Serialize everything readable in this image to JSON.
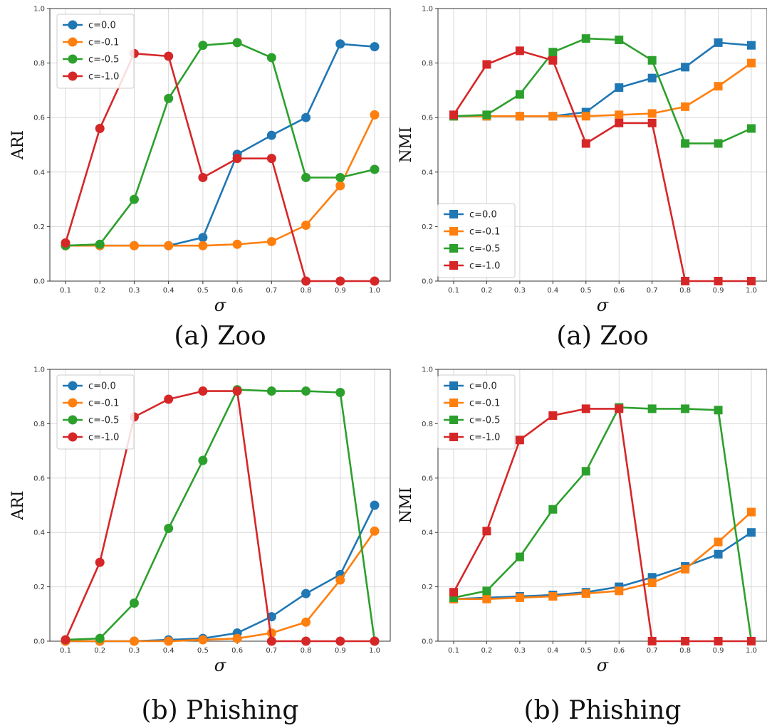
{
  "chart_data": [
    {
      "type": "line",
      "caption": "(a) Zoo",
      "ylabel": "ARI",
      "xlabel": "σ",
      "marker": "circle",
      "legend": "top-left",
      "grid": true,
      "xlim": [
        0.1,
        1.0
      ],
      "ylim": [
        0.0,
        1.0
      ],
      "xticks": [
        "0.1",
        "0.2",
        "0.3",
        "0.4",
        "0.5",
        "0.6",
        "0.7",
        "0.8",
        "0.9",
        "1.0"
      ],
      "yticks": [
        "0.0",
        "0.2",
        "0.4",
        "0.6",
        "0.8",
        "1.0"
      ],
      "x": [
        0.1,
        0.2,
        0.3,
        0.4,
        0.5,
        0.6,
        0.7,
        0.8,
        0.9,
        1.0
      ],
      "series": [
        {
          "name": "c=0.0",
          "color": "#1f77b4",
          "values": [
            0.13,
            0.13,
            0.13,
            0.13,
            0.16,
            0.465,
            0.535,
            0.6,
            0.87,
            0.86
          ]
        },
        {
          "name": "c=-0.1",
          "color": "#ff7f0e",
          "values": [
            0.13,
            0.13,
            0.13,
            0.13,
            0.13,
            0.135,
            0.145,
            0.205,
            0.35,
            0.61
          ]
        },
        {
          "name": "c=-0.5",
          "color": "#2ca02c",
          "values": [
            0.13,
            0.135,
            0.3,
            0.67,
            0.865,
            0.875,
            0.82,
            0.38,
            0.38,
            0.41
          ]
        },
        {
          "name": "c=-1.0",
          "color": "#d62728",
          "values": [
            0.14,
            0.56,
            0.835,
            0.825,
            0.38,
            0.45,
            0.45,
            0.0,
            0.0,
            0.0
          ]
        }
      ]
    },
    {
      "type": "line",
      "caption": "(a) Zoo",
      "ylabel": "NMI",
      "xlabel": "σ",
      "marker": "square",
      "legend": "bottom-left",
      "grid": true,
      "xlim": [
        0.1,
        1.0
      ],
      "ylim": [
        0.0,
        1.0
      ],
      "xticks": [
        "0.1",
        "0.2",
        "0.3",
        "0.4",
        "0.5",
        "0.6",
        "0.7",
        "0.8",
        "0.9",
        "1.0"
      ],
      "yticks": [
        "0.0",
        "0.2",
        "0.4",
        "0.6",
        "0.8",
        "1.0"
      ],
      "x": [
        0.1,
        0.2,
        0.3,
        0.4,
        0.5,
        0.6,
        0.7,
        0.8,
        0.9,
        1.0
      ],
      "series": [
        {
          "name": "c=0.0",
          "color": "#1f77b4",
          "values": [
            0.605,
            0.605,
            0.605,
            0.605,
            0.62,
            0.71,
            0.745,
            0.785,
            0.875,
            0.865
          ]
        },
        {
          "name": "c=-0.1",
          "color": "#ff7f0e",
          "values": [
            0.605,
            0.605,
            0.605,
            0.605,
            0.605,
            0.61,
            0.615,
            0.64,
            0.715,
            0.8
          ]
        },
        {
          "name": "c=-0.5",
          "color": "#2ca02c",
          "values": [
            0.605,
            0.61,
            0.685,
            0.84,
            0.89,
            0.885,
            0.81,
            0.505,
            0.505,
            0.56
          ]
        },
        {
          "name": "c=-1.0",
          "color": "#d62728",
          "values": [
            0.61,
            0.795,
            0.845,
            0.81,
            0.505,
            0.58,
            0.58,
            0.0,
            0.0,
            0.0
          ]
        }
      ]
    },
    {
      "type": "line",
      "caption": "(b) Phishing",
      "ylabel": "ARI",
      "xlabel": "σ",
      "marker": "circle",
      "legend": "top-left",
      "grid": true,
      "xlim": [
        0.1,
        1.0
      ],
      "ylim": [
        0.0,
        1.0
      ],
      "xticks": [
        "0.1",
        "0.2",
        "0.3",
        "0.4",
        "0.5",
        "0.6",
        "0.7",
        "0.8",
        "0.9",
        "1.0"
      ],
      "yticks": [
        "0.0",
        "0.2",
        "0.4",
        "0.6",
        "0.8",
        "1.0"
      ],
      "x": [
        0.1,
        0.2,
        0.3,
        0.4,
        0.5,
        0.6,
        0.7,
        0.8,
        0.9,
        1.0
      ],
      "series": [
        {
          "name": "c=0.0",
          "color": "#1f77b4",
          "values": [
            0.0,
            0.0,
            0.0,
            0.005,
            0.01,
            0.03,
            0.09,
            0.175,
            0.245,
            0.5
          ]
        },
        {
          "name": "c=-0.1",
          "color": "#ff7f0e",
          "values": [
            0.0,
            0.0,
            0.0,
            0.0,
            0.005,
            0.01,
            0.03,
            0.07,
            0.225,
            0.405
          ]
        },
        {
          "name": "c=-0.5",
          "color": "#2ca02c",
          "values": [
            0.005,
            0.01,
            0.14,
            0.415,
            0.665,
            0.925,
            0.92,
            0.92,
            0.915,
            0.0
          ]
        },
        {
          "name": "c=-1.0",
          "color": "#d62728",
          "values": [
            0.005,
            0.29,
            0.825,
            0.89,
            0.92,
            0.92,
            0.0,
            0.0,
            0.0,
            0.0
          ]
        }
      ]
    },
    {
      "type": "line",
      "caption": "(b) Phishing",
      "ylabel": "NMI",
      "xlabel": "σ",
      "marker": "square",
      "legend": "top-left",
      "grid": true,
      "xlim": [
        0.1,
        1.0
      ],
      "ylim": [
        0.0,
        1.0
      ],
      "xticks": [
        "0.1",
        "0.2",
        "0.3",
        "0.4",
        "0.5",
        "0.6",
        "0.7",
        "0.8",
        "0.9",
        "1.0"
      ],
      "yticks": [
        "0.0",
        "0.2",
        "0.4",
        "0.6",
        "0.8",
        "1.0"
      ],
      "x": [
        0.1,
        0.2,
        0.3,
        0.4,
        0.5,
        0.6,
        0.7,
        0.8,
        0.9,
        1.0
      ],
      "series": [
        {
          "name": "c=0.0",
          "color": "#1f77b4",
          "values": [
            0.155,
            0.16,
            0.165,
            0.17,
            0.18,
            0.2,
            0.235,
            0.275,
            0.32,
            0.4
          ]
        },
        {
          "name": "c=-0.1",
          "color": "#ff7f0e",
          "values": [
            0.155,
            0.155,
            0.16,
            0.165,
            0.175,
            0.185,
            0.215,
            0.265,
            0.365,
            0.475
          ]
        },
        {
          "name": "c=-0.5",
          "color": "#2ca02c",
          "values": [
            0.16,
            0.185,
            0.31,
            0.485,
            0.625,
            0.86,
            0.855,
            0.855,
            0.85,
            0.0
          ]
        },
        {
          "name": "c=-1.0",
          "color": "#d62728",
          "values": [
            0.18,
            0.405,
            0.74,
            0.83,
            0.855,
            0.855,
            0.0,
            0.0,
            0.0,
            0.0
          ]
        }
      ]
    }
  ]
}
